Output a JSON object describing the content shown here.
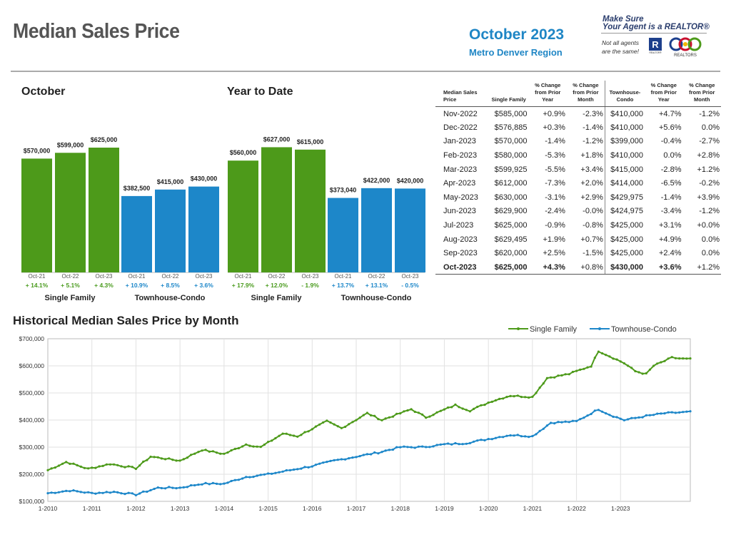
{
  "header": {
    "title": "Median Sales Price",
    "month": "October 2023",
    "region": "Metro Denver Region",
    "promo_line1": "Make Sure",
    "promo_line2": "Your Agent is a REALTOR®",
    "promo_note1": "Not all agents",
    "promo_note2": "are the same!",
    "realtor_logo_text": "REALTOR®",
    "assoc_logo_text": "REALTORS"
  },
  "colors": {
    "single_family": "#4d9a1a",
    "townhouse": "#1d87c9",
    "sf_text": "#4a9b1e",
    "th_text": "#1d87c9"
  },
  "table": {
    "headers": [
      "Median Sales Price",
      "Single Family",
      "% Change from Prior Year",
      "% Change from Prior Month",
      "Townhouse-Condo",
      "% Change from Prior Year",
      "% Change from Prior Month"
    ],
    "rows": [
      [
        "Nov-2022",
        "$585,000",
        "+0.9%",
        "-2.3%",
        "$410,000",
        "+4.7%",
        "-1.2%"
      ],
      [
        "Dec-2022",
        "$576,885",
        "+0.3%",
        "-1.4%",
        "$410,000",
        "+5.6%",
        "0.0%"
      ],
      [
        "Jan-2023",
        "$570,000",
        "-1.4%",
        "-1.2%",
        "$399,000",
        "-0.4%",
        "-2.7%"
      ],
      [
        "Feb-2023",
        "$580,000",
        "-5.3%",
        "+1.8%",
        "$410,000",
        "0.0%",
        "+2.8%"
      ],
      [
        "Mar-2023",
        "$599,925",
        "-5.5%",
        "+3.4%",
        "$415,000",
        "-2.8%",
        "+1.2%"
      ],
      [
        "Apr-2023",
        "$612,000",
        "-7.3%",
        "+2.0%",
        "$414,000",
        "-6.5%",
        "-0.2%"
      ],
      [
        "May-2023",
        "$630,000",
        "-3.1%",
        "+2.9%",
        "$429,975",
        "-1.4%",
        "+3.9%"
      ],
      [
        "Jun-2023",
        "$629,900",
        "-2.4%",
        "-0.0%",
        "$424,975",
        "-3.4%",
        "-1.2%"
      ],
      [
        "Jul-2023",
        "$625,000",
        "-0.9%",
        "-0.8%",
        "$425,000",
        "+3.1%",
        "+0.0%"
      ],
      [
        "Aug-2023",
        "$629,495",
        "+1.9%",
        "+0.7%",
        "$425,000",
        "+4.9%",
        "0.0%"
      ],
      [
        "Sep-2023",
        "$620,000",
        "+2.5%",
        "-1.5%",
        "$425,000",
        "+2.4%",
        "0.0%"
      ],
      [
        "Oct-2023",
        "$625,000",
        "+4.3%",
        "+0.8%",
        "$430,000",
        "+3.6%",
        "+1.2%"
      ]
    ]
  },
  "chart_data": [
    {
      "type": "bar",
      "title": "October",
      "categories": [
        "Oct-21",
        "Oct-22",
        "Oct-23"
      ],
      "series": [
        {
          "name": "Single Family",
          "values": [
            570000,
            599000,
            625000
          ],
          "labels": [
            "$570,000",
            "$599,000",
            "$625,000"
          ],
          "changes": [
            "+ 14.1%",
            "+ 5.1%",
            "+ 4.3%"
          ]
        },
        {
          "name": "Townhouse-Condo",
          "values": [
            382500,
            415000,
            430000
          ],
          "labels": [
            "$382,500",
            "$415,000",
            "$430,000"
          ],
          "changes": [
            "+ 10.9%",
            "+ 8.5%",
            "+ 3.6%"
          ]
        }
      ]
    },
    {
      "type": "bar",
      "title": "Year to Date",
      "categories": [
        "Oct-21",
        "Oct-22",
        "Oct-23"
      ],
      "series": [
        {
          "name": "Single Family",
          "values": [
            560000,
            627000,
            615000
          ],
          "labels": [
            "$560,000",
            "$627,000",
            "$615,000"
          ],
          "changes": [
            "+ 17.9%",
            "+ 12.0%",
            "- 1.9%"
          ]
        },
        {
          "name": "Townhouse-Condo",
          "values": [
            373040,
            422000,
            420000
          ],
          "labels": [
            "$373,040",
            "$422,000",
            "$420,000"
          ],
          "changes": [
            "+ 13.7%",
            "+ 13.1%",
            "- 0.5%"
          ]
        }
      ]
    },
    {
      "type": "line",
      "title": "Historical Median Sales Price by Month",
      "ylim": [
        100000,
        700000
      ],
      "yticks": [
        "$100,000",
        "$200,000",
        "$300,000",
        "$400,000",
        "$500,000",
        "$600,000",
        "$700,000"
      ],
      "xticks": [
        "1-2010",
        "1-2011",
        "1-2012",
        "1-2013",
        "1-2014",
        "1-2015",
        "1-2016",
        "1-2017",
        "1-2018",
        "1-2019",
        "1-2020",
        "1-2021",
        "1-2022",
        "1-2023"
      ],
      "legend": "top-right",
      "x_start": "2010-01",
      "x_end": "2023-10",
      "keypoints": {
        "Single Family": [
          [
            0,
            215000
          ],
          [
            5,
            245000
          ],
          [
            11,
            220000
          ],
          [
            17,
            238000
          ],
          [
            24,
            222000
          ],
          [
            28,
            265000
          ],
          [
            36,
            250000
          ],
          [
            42,
            290000
          ],
          [
            48,
            275000
          ],
          [
            54,
            310000
          ],
          [
            58,
            300000
          ],
          [
            64,
            350000
          ],
          [
            68,
            340000
          ],
          [
            76,
            395000
          ],
          [
            80,
            370000
          ],
          [
            87,
            425000
          ],
          [
            91,
            400000
          ],
          [
            99,
            440000
          ],
          [
            103,
            410000
          ],
          [
            111,
            455000
          ],
          [
            115,
            435000
          ],
          [
            121,
            470000
          ],
          [
            126,
            490000
          ],
          [
            132,
            485000
          ],
          [
            136,
            555000
          ],
          [
            142,
            570000
          ],
          [
            144,
            580000
          ],
          [
            148,
            600000
          ],
          [
            150,
            655000
          ],
          [
            157,
            610000
          ],
          [
            160,
            580000
          ],
          [
            163,
            570000
          ],
          [
            165,
            600000
          ],
          [
            170,
            630000
          ],
          [
            174,
            625000
          ],
          [
            175,
            625000
          ]
        ],
        "Townhouse-Condo": [
          [
            0,
            130000
          ],
          [
            6,
            140000
          ],
          [
            12,
            130000
          ],
          [
            18,
            135000
          ],
          [
            24,
            125000
          ],
          [
            30,
            150000
          ],
          [
            36,
            150000
          ],
          [
            42,
            165000
          ],
          [
            48,
            165000
          ],
          [
            54,
            190000
          ],
          [
            60,
            200000
          ],
          [
            66,
            215000
          ],
          [
            72,
            230000
          ],
          [
            78,
            250000
          ],
          [
            84,
            265000
          ],
          [
            90,
            280000
          ],
          [
            96,
            300000
          ],
          [
            102,
            300000
          ],
          [
            108,
            310000
          ],
          [
            114,
            315000
          ],
          [
            120,
            330000
          ],
          [
            126,
            345000
          ],
          [
            132,
            340000
          ],
          [
            137,
            390000
          ],
          [
            144,
            395000
          ],
          [
            150,
            440000
          ],
          [
            153,
            420000
          ],
          [
            157,
            400000
          ],
          [
            163,
            415000
          ],
          [
            168,
            425000
          ],
          [
            175,
            430000
          ]
        ]
      },
      "series": [
        {
          "name": "Single Family"
        },
        {
          "name": "Townhouse-Condo"
        }
      ]
    }
  ]
}
